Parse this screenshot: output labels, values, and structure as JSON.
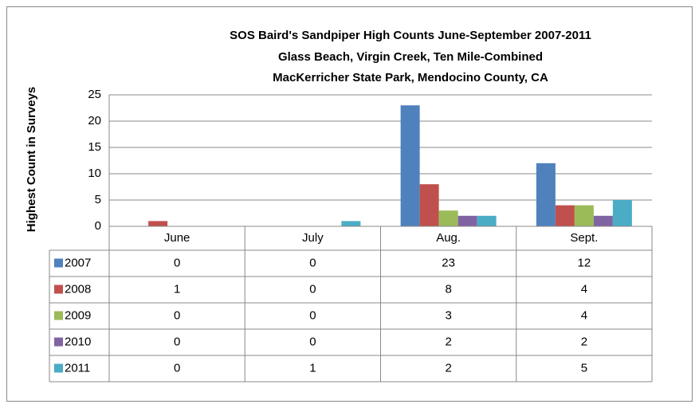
{
  "chart_data": {
    "type": "bar",
    "title": [
      "SOS Baird's Sandpiper  High Counts June-September 2007-2011",
      "Glass Beach, Virgin Creek, Ten Mile-Combined",
      "MacKerricher State Park, Mendocino County, CA"
    ],
    "y_label": "Highest Count in Surveys",
    "categories": [
      "June",
      "July",
      "Aug.",
      "Sept."
    ],
    "series": [
      {
        "name": "2007",
        "color": "#4f81bd",
        "values": [
          0,
          0,
          23,
          12
        ]
      },
      {
        "name": "2008",
        "color": "#c0504d",
        "values": [
          1,
          0,
          8,
          4
        ]
      },
      {
        "name": "2009",
        "color": "#9bbb59",
        "values": [
          0,
          0,
          3,
          4
        ]
      },
      {
        "name": "2010",
        "color": "#8064a2",
        "values": [
          0,
          0,
          2,
          2
        ]
      },
      {
        "name": "2011",
        "color": "#4bacc6",
        "values": [
          0,
          1,
          2,
          5
        ]
      }
    ],
    "ylim": [
      0,
      25
    ],
    "yticks": [
      0,
      5,
      10,
      15,
      20,
      25
    ],
    "grid": true,
    "data_table": true
  }
}
